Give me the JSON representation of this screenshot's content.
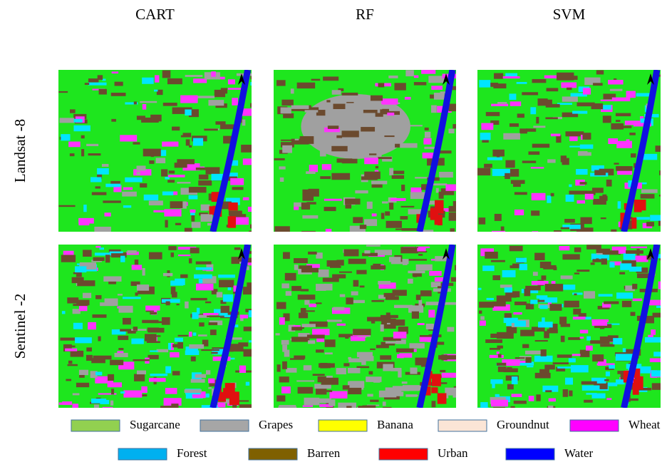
{
  "columns": [
    "CART",
    "RF",
    "SVM"
  ],
  "rows": [
    "Landsat -8",
    "Sentinel -2"
  ],
  "legend": [
    {
      "name": "Sugarcane",
      "color": "#92d050"
    },
    {
      "name": "Grapes",
      "color": "#a6a6a6"
    },
    {
      "name": "Banana",
      "color": "#ffff00"
    },
    {
      "name": "Groundnut",
      "color": "#fbe5d6"
    },
    {
      "name": "Wheat",
      "color": "#ff00ff"
    },
    {
      "name": "Forest",
      "color": "#00b0f0"
    },
    {
      "name": "Barren",
      "color": "#7f6000"
    },
    {
      "name": "Urban",
      "color": "#ff0000"
    },
    {
      "name": "Water",
      "color": "#0000ff"
    }
  ]
}
